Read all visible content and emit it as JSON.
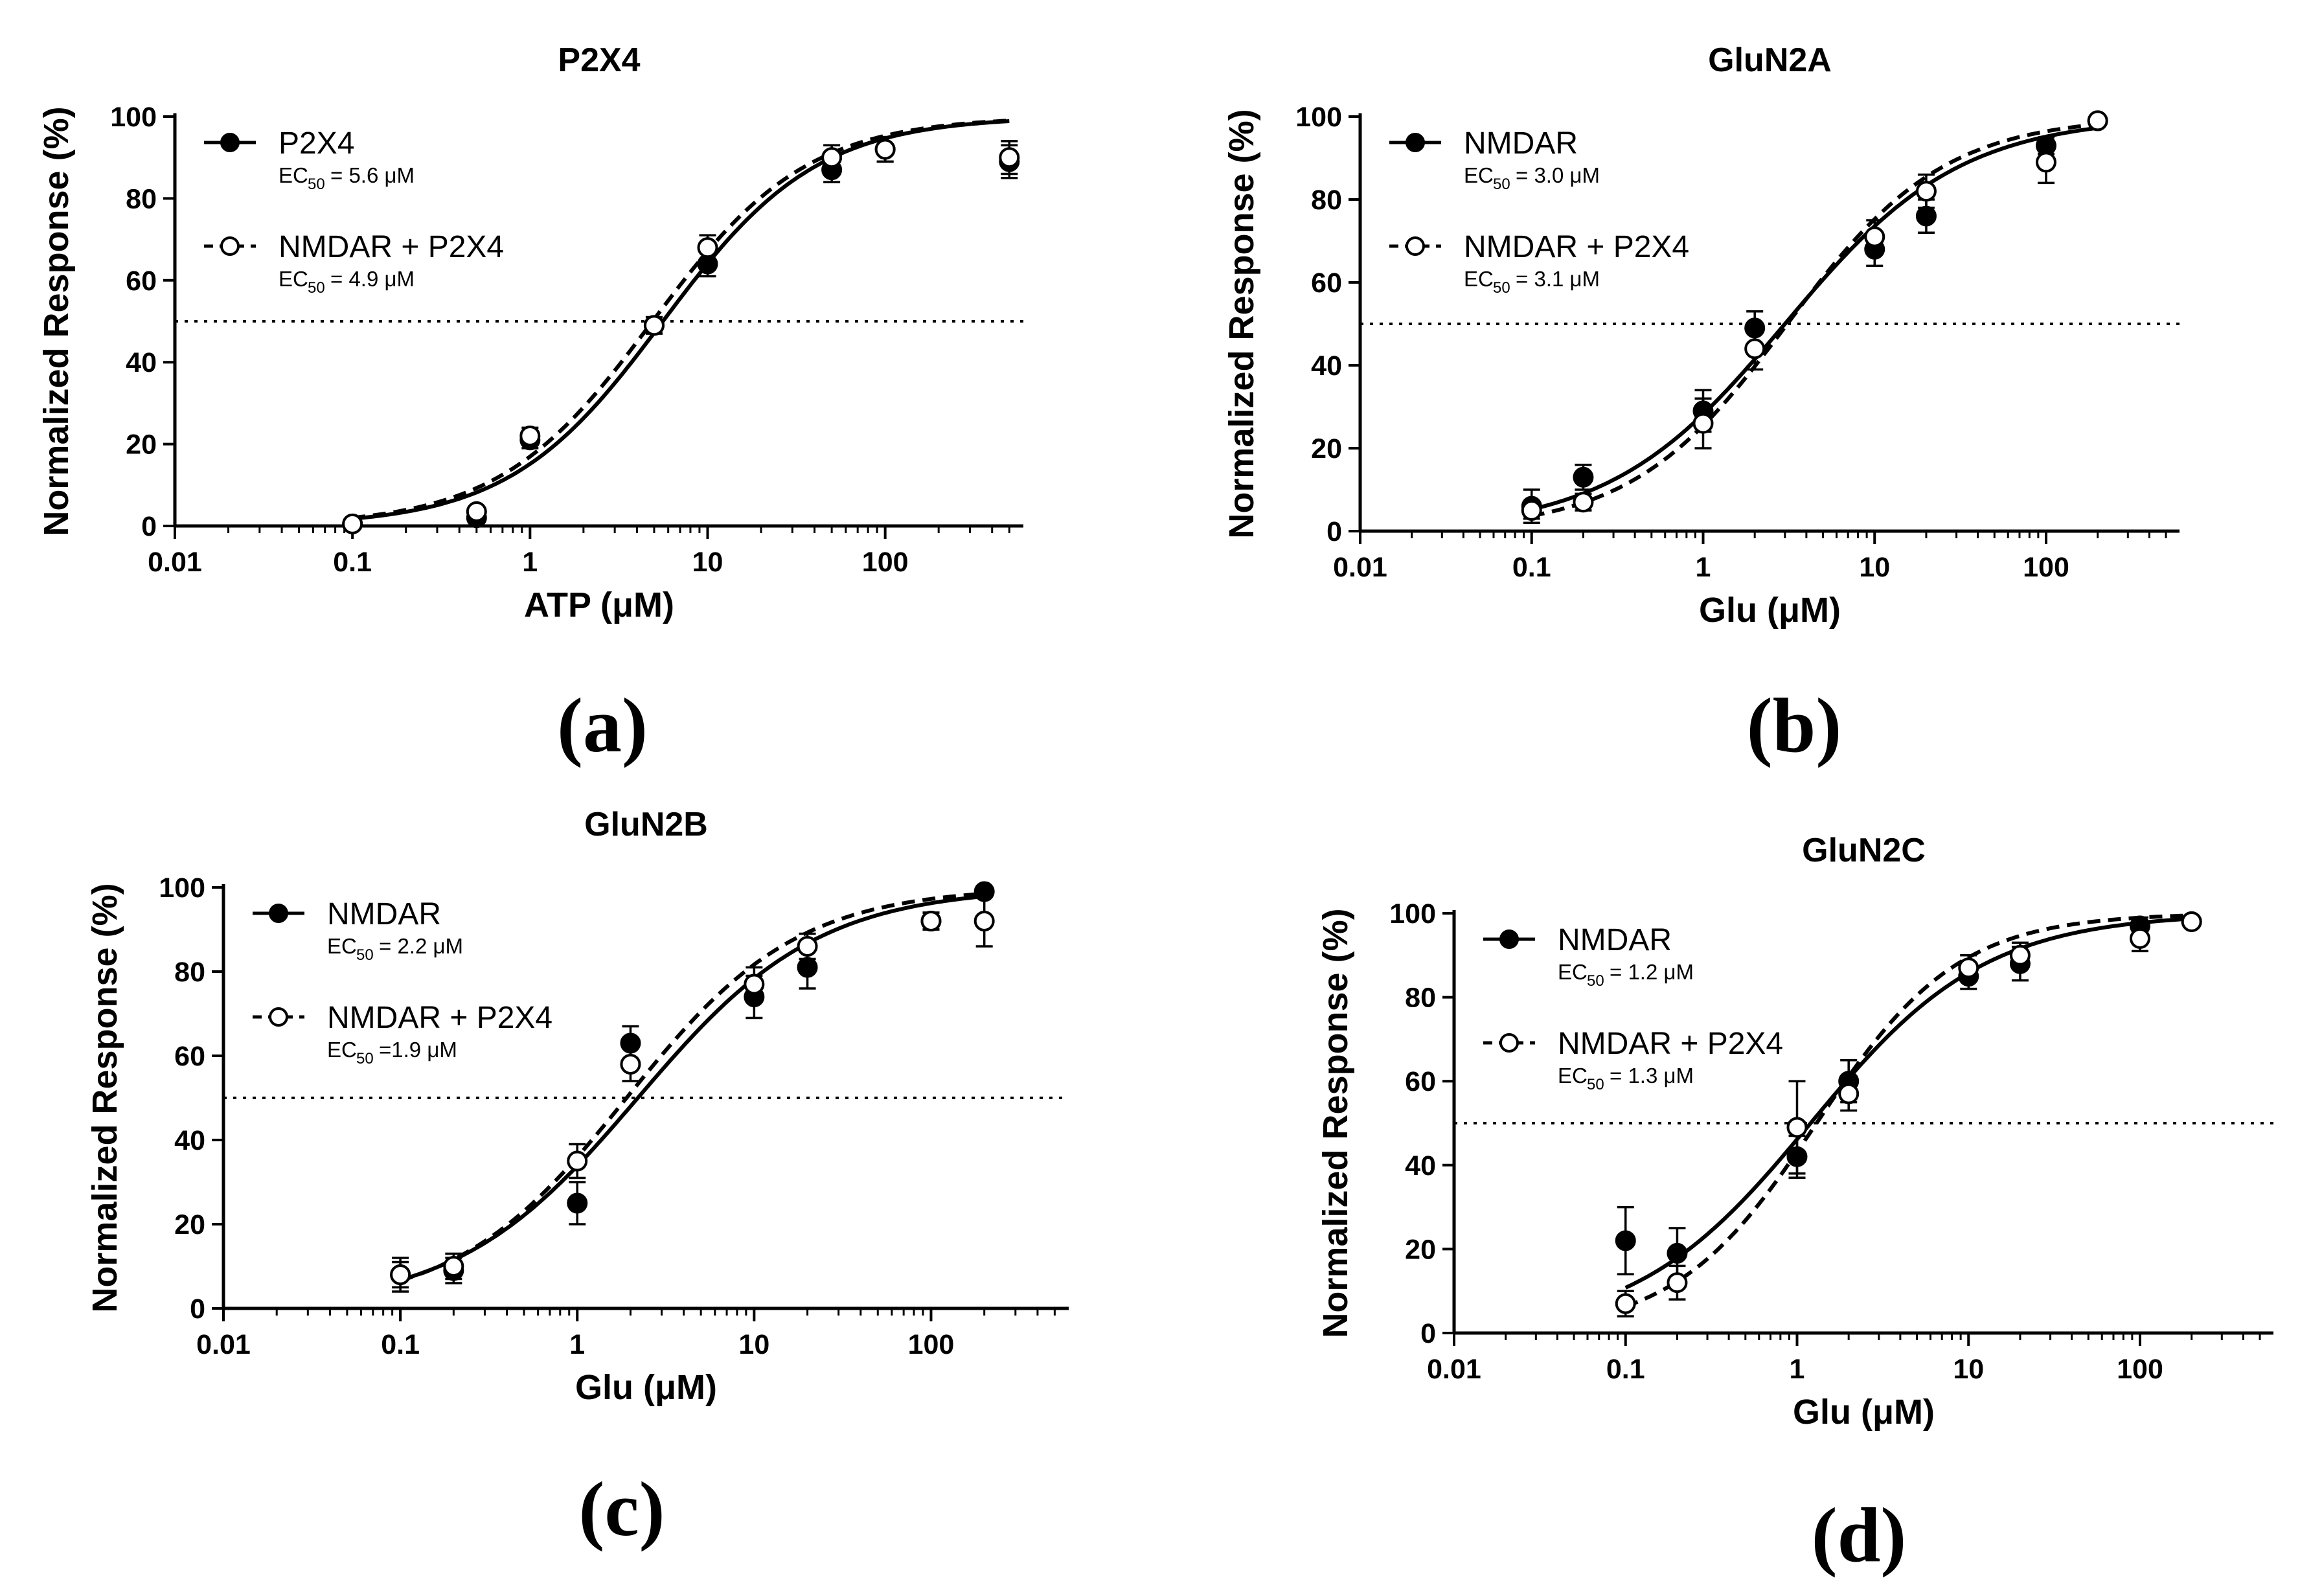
{
  "chart_data": [
    {
      "id": "a",
      "type": "line",
      "panel_label": "(a)",
      "title": "P2X4",
      "xlabel": "ATP (μM)",
      "ylabel": "Normalized Response (%)",
      "xscale": "log",
      "xlim": [
        0.01,
        600
      ],
      "ylim": [
        0,
        100
      ],
      "xtick_labels": [
        "0.01",
        "0.1",
        "1",
        "10",
        "100"
      ],
      "ytick_labels": [
        "0",
        "20",
        "40",
        "60",
        "80",
        "100"
      ],
      "reference_line_y": 50,
      "legend_position": "top-left",
      "series": [
        {
          "name": "P2X4",
          "ec50_text": "= 5.6 μM",
          "marker": "filled",
          "line": "solid",
          "fit": {
            "ec50": 5.6,
            "hill": 1.0,
            "top": 100,
            "bottom": 0,
            "x_range": [
              0.1,
              500
            ]
          },
          "x": [
            0.1,
            0.5,
            1,
            5,
            10,
            50,
            100,
            500
          ],
          "y": [
            0.5,
            2,
            21,
            49,
            64,
            87,
            92,
            89
          ],
          "err": [
            0,
            0,
            2,
            2,
            3,
            3,
            3,
            4
          ]
        },
        {
          "name": "NMDAR + P2X4",
          "ec50_text": "= 4.9 μM",
          "marker": "open",
          "line": "dashed",
          "fit": {
            "ec50": 4.9,
            "hill": 1.0,
            "top": 100,
            "bottom": 0,
            "x_range": [
              0.1,
              500
            ]
          },
          "x": [
            0.1,
            0.5,
            1,
            5,
            10,
            50,
            100,
            500
          ],
          "y": [
            0.5,
            3.5,
            22,
            49,
            68,
            90,
            92,
            90
          ],
          "err": [
            0,
            0,
            2,
            2,
            3,
            3,
            3,
            4
          ]
        }
      ]
    },
    {
      "id": "b",
      "type": "line",
      "panel_label": "(b)",
      "title": "GluN2A",
      "xlabel": "Glu (μM)",
      "ylabel": "Normalized Response (%)",
      "xscale": "log",
      "xlim": [
        0.01,
        600
      ],
      "ylim": [
        0,
        100
      ],
      "xtick_labels": [
        "0.01",
        "0.1",
        "1",
        "10",
        "100"
      ],
      "ytick_labels": [
        "0",
        "20",
        "40",
        "60",
        "80",
        "100"
      ],
      "reference_line_y": 50,
      "legend_position": "top-left",
      "series": [
        {
          "name": "NMDAR",
          "ec50_text": "= 3.0 μM",
          "marker": "filled",
          "line": "solid",
          "fit": {
            "ec50": 3.0,
            "hill": 0.85,
            "top": 100,
            "bottom": 0,
            "x_range": [
              0.1,
              200
            ]
          },
          "x": [
            0.1,
            0.2,
            1,
            2,
            10,
            20,
            100,
            200
          ],
          "y": [
            6,
            13,
            29,
            49,
            68,
            76,
            93,
            99
          ],
          "err": [
            4,
            3,
            5,
            4,
            4,
            4,
            2,
            1
          ]
        },
        {
          "name": "NMDAR + P2X4",
          "ec50_text": "= 3.1 μM",
          "marker": "open",
          "line": "dashed",
          "fit": {
            "ec50": 3.1,
            "hill": 0.95,
            "top": 100,
            "bottom": 0,
            "x_range": [
              0.1,
              200
            ]
          },
          "x": [
            0.1,
            0.2,
            1,
            2,
            10,
            20,
            100,
            200
          ],
          "y": [
            5,
            7,
            26,
            44,
            71,
            82,
            89,
            99
          ],
          "err": [
            2,
            2,
            6,
            5,
            4,
            4,
            5,
            1
          ]
        }
      ]
    },
    {
      "id": "c",
      "type": "line",
      "panel_label": "(c)",
      "title": "GluN2B",
      "xlabel": "Glu (μM)",
      "ylabel": "Normalized Response (%)",
      "xscale": "log",
      "xlim": [
        0.01,
        600
      ],
      "ylim": [
        0,
        100
      ],
      "xtick_labels": [
        "0.01",
        "0.1",
        "1",
        "10",
        "100"
      ],
      "ytick_labels": [
        "0",
        "20",
        "40",
        "60",
        "80",
        "100"
      ],
      "reference_line_y": 50,
      "legend_position": "top-left",
      "series": [
        {
          "name": "NMDAR",
          "ec50_text": "= 2.2 μM",
          "marker": "filled",
          "line": "solid",
          "fit": {
            "ec50": 2.2,
            "hill": 0.85,
            "top": 100,
            "bottom": 0,
            "x_range": [
              0.1,
              200
            ]
          },
          "x": [
            0.1,
            0.2,
            1,
            2,
            10,
            20,
            100,
            200
          ],
          "y": [
            8,
            9,
            25,
            63,
            74,
            81,
            92,
            99
          ],
          "err": [
            3,
            3,
            5,
            4,
            5,
            5,
            2,
            1
          ]
        },
        {
          "name": "NMDAR + P2X4",
          "ec50_text": "=1.9 μM",
          "marker": "open",
          "line": "dashed",
          "fit": {
            "ec50": 1.9,
            "hill": 0.9,
            "top": 100,
            "bottom": 0,
            "x_range": [
              0.1,
              200
            ]
          },
          "x": [
            0.1,
            0.2,
            1,
            2,
            10,
            20,
            100,
            200
          ],
          "y": [
            8,
            10,
            35,
            58,
            77,
            86,
            92,
            92
          ],
          "err": [
            4,
            3,
            4,
            4,
            4,
            3,
            2,
            6
          ]
        }
      ]
    },
    {
      "id": "d",
      "type": "line",
      "panel_label": "(d)",
      "title": "GluN2C",
      "xlabel": "Glu (μM)",
      "ylabel": "Normalized Response (%)",
      "xscale": "log",
      "xlim": [
        0.01,
        600
      ],
      "ylim": [
        0,
        100
      ],
      "xtick_labels": [
        "0.01",
        "0.1",
        "1",
        "10",
        "100"
      ],
      "ytick_labels": [
        "0",
        "20",
        "40",
        "60",
        "80",
        "100"
      ],
      "reference_line_y": 50,
      "legend_position": "top-left",
      "series": [
        {
          "name": "NMDAR",
          "ec50_text": "= 1.2 μM",
          "marker": "filled",
          "line": "solid",
          "fit": {
            "ec50": 1.2,
            "hill": 0.85,
            "top": 100,
            "bottom": 0,
            "x_range": [
              0.1,
              200
            ]
          },
          "x": [
            0.1,
            0.2,
            1,
            2,
            10,
            20,
            100,
            200
          ],
          "y": [
            22,
            19,
            42,
            60,
            85,
            88,
            97,
            98
          ],
          "err": [
            8,
            6,
            5,
            5,
            3,
            4,
            2,
            1
          ]
        },
        {
          "name": "NMDAR + P2X4",
          "ec50_text": "= 1.3 μM",
          "marker": "open",
          "line": "dashed",
          "fit": {
            "ec50": 1.3,
            "hill": 1.05,
            "top": 100,
            "bottom": 0,
            "x_range": [
              0.1,
              200
            ]
          },
          "x": [
            0.1,
            0.2,
            1,
            2,
            10,
            20,
            100,
            200
          ],
          "y": [
            7,
            12,
            49,
            57,
            87,
            90,
            94,
            98
          ],
          "err": [
            3,
            4,
            11,
            4,
            3,
            3,
            3,
            1
          ]
        }
      ]
    }
  ]
}
